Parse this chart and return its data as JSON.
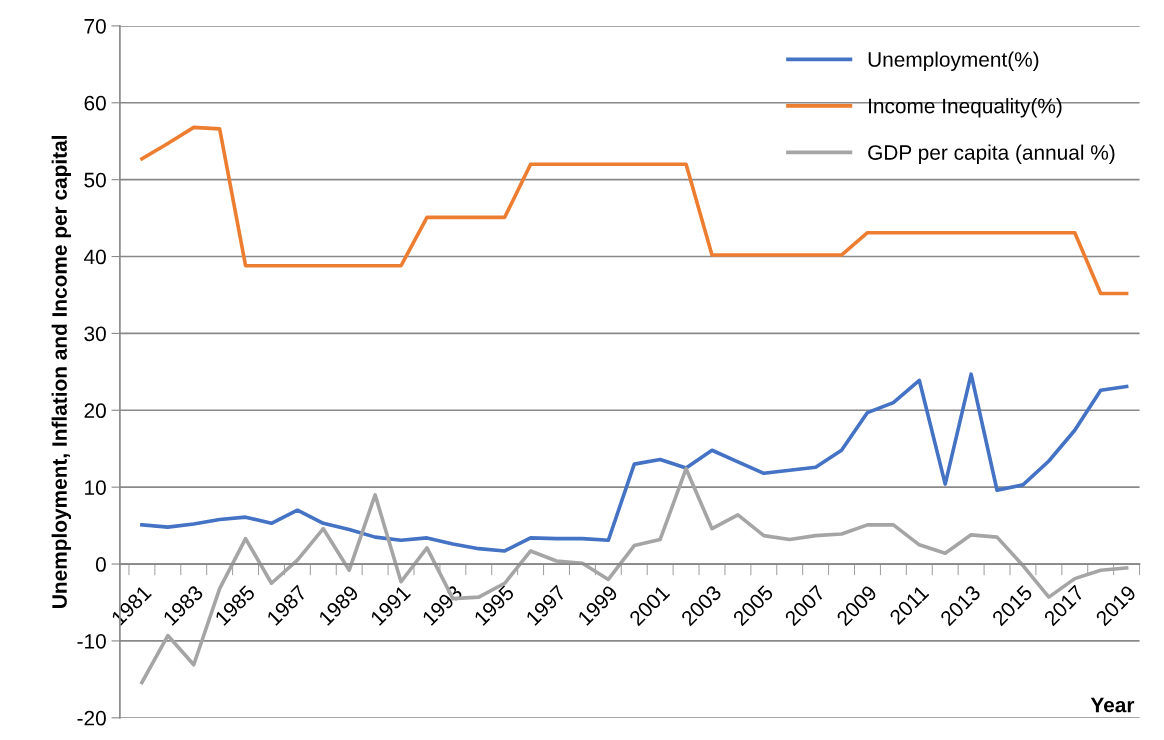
{
  "chart_data": {
    "type": "line",
    "xlabel": "Year",
    "ylabel": "Unemployment, Inflation and Income per capital",
    "categories": [
      "1981",
      null,
      "1983",
      null,
      "1985",
      null,
      "1987",
      null,
      "1989",
      null,
      "1991",
      null,
      "1993",
      null,
      "1995",
      null,
      "1997",
      null,
      "1999",
      null,
      "2001",
      null,
      "2003",
      null,
      "2005",
      null,
      "2007",
      null,
      "2009",
      null,
      "2011",
      null,
      "2013",
      null,
      "2015",
      null,
      "2017",
      null,
      "2019"
    ],
    "series": [
      {
        "name": "Unemployment(%)",
        "color": "#4472c4",
        "values": [
          5.1,
          4.8,
          5.2,
          5.8,
          6.1,
          5.3,
          7.0,
          5.3,
          4.5,
          3.5,
          3.1,
          3.4,
          2.6,
          2.0,
          1.7,
          3.4,
          3.3,
          3.3,
          3.1,
          13.0,
          13.6,
          12.5,
          14.8,
          13.3,
          11.8,
          12.2,
          12.6,
          14.8,
          19.7,
          21.0,
          23.9,
          10.4,
          24.7,
          9.6,
          10.3,
          13.4,
          17.4,
          22.6,
          23.1
        ]
      },
      {
        "name": "Income Inequality(%)",
        "color": "#ed7d31",
        "values": [
          52.7,
          54.7,
          56.8,
          56.6,
          38.8,
          38.8,
          38.8,
          38.8,
          38.8,
          38.8,
          38.8,
          45.1,
          45.1,
          45.1,
          45.1,
          52.0,
          52.0,
          52.0,
          52.0,
          52.0,
          52.0,
          52.0,
          40.2,
          40.2,
          40.2,
          40.2,
          40.2,
          40.2,
          43.1,
          43.1,
          43.1,
          43.1,
          43.1,
          43.1,
          43.1,
          43.1,
          43.1,
          35.2,
          35.2
        ]
      },
      {
        "name": "GDP per capita (annual %)",
        "color": "#a5a5a5",
        "values": [
          -15.4,
          -9.3,
          -13.1,
          -3.2,
          3.3,
          -2.5,
          0.5,
          4.6,
          -0.8,
          9.0,
          -2.3,
          2.1,
          -4.5,
          -4.3,
          -2.5,
          1.7,
          0.4,
          0.1,
          -2.0,
          2.4,
          3.2,
          12.4,
          4.6,
          6.4,
          3.7,
          3.2,
          3.7,
          3.9,
          5.1,
          5.1,
          2.5,
          1.4,
          3.8,
          3.5,
          -0.2,
          -4.3,
          -1.9,
          -0.8,
          -0.5
        ]
      }
    ],
    "ylim": [
      -20,
      70
    ],
    "yticks": [
      -20,
      -10,
      0,
      10,
      20,
      30,
      40,
      50,
      60,
      70
    ],
    "grid": "y",
    "legend": "top right",
    "marker": "none",
    "line_style": "solid"
  }
}
